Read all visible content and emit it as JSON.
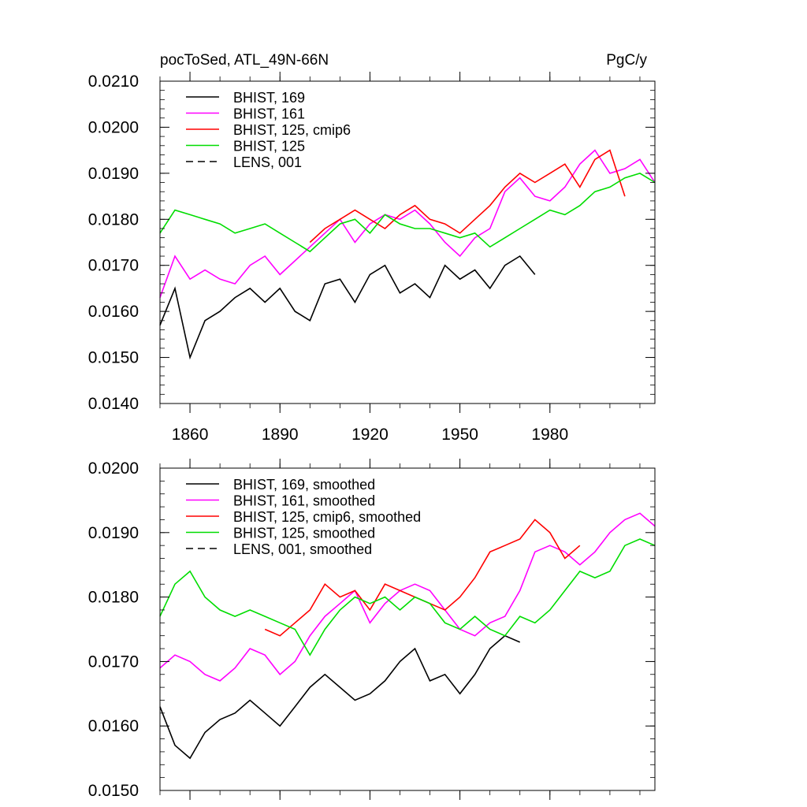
{
  "chart_data": [
    {
      "type": "line",
      "title_left": "pocToSed, ATL_49N-66N",
      "title_right": "PgC/y",
      "xlim": [
        1850,
        2015
      ],
      "x_ticks": [
        1860,
        1890,
        1920,
        1950,
        1980
      ],
      "x_tick_labels": [
        "1860",
        "1890",
        "1920",
        "1950",
        "1980"
      ],
      "ylim": [
        0.014,
        0.021
      ],
      "y_ticks": [
        0.014,
        0.015,
        0.016,
        0.017,
        0.018,
        0.019,
        0.02,
        0.021
      ],
      "y_tick_labels": [
        "0.0140",
        "0.0150",
        "0.0160",
        "0.0170",
        "0.0180",
        "0.0190",
        "0.0200",
        "0.0210"
      ],
      "legend_position": "top-left",
      "series": [
        {
          "name": "BHIST, 169",
          "color": "#000000",
          "dash": "solid",
          "x_start": 1850,
          "x_step": 5,
          "values": [
            0.0157,
            0.0165,
            0.015,
            0.0158,
            0.016,
            0.0163,
            0.0165,
            0.0162,
            0.0165,
            0.016,
            0.0158,
            0.0166,
            0.0167,
            0.0162,
            0.0168,
            0.017,
            0.0164,
            0.0166,
            0.0163,
            0.017,
            0.0167,
            0.0169,
            0.0165,
            0.017,
            0.0172,
            0.0168
          ]
        },
        {
          "name": "BHIST, 161",
          "color": "#ff00ff",
          "dash": "solid",
          "x_start": 1850,
          "x_step": 5,
          "values": [
            0.0163,
            0.0172,
            0.0167,
            0.0169,
            0.0167,
            0.0166,
            0.017,
            0.0172,
            0.0168,
            0.0171,
            0.0174,
            0.0177,
            0.018,
            0.0175,
            0.0179,
            0.0181,
            0.018,
            0.0182,
            0.0179,
            0.0175,
            0.0172,
            0.0176,
            0.0178,
            0.0186,
            0.0189,
            0.0185,
            0.0184,
            0.0187,
            0.0192,
            0.0195,
            0.019,
            0.0191,
            0.0193,
            0.0188
          ]
        },
        {
          "name": "BHIST, 125, cmip6",
          "color": "#ff0000",
          "dash": "solid",
          "x_start": 1900,
          "x_step": 5,
          "values": [
            0.0175,
            0.0178,
            0.018,
            0.0182,
            0.018,
            0.0178,
            0.0181,
            0.0183,
            0.018,
            0.0179,
            0.0177,
            0.018,
            0.0183,
            0.0187,
            0.019,
            0.0188,
            0.019,
            0.0192,
            0.0187,
            0.0193,
            0.0195,
            0.0185
          ]
        },
        {
          "name": "BHIST, 125",
          "color": "#00dd00",
          "dash": "solid",
          "x_start": 1850,
          "x_step": 5,
          "values": [
            0.0177,
            0.0182,
            0.0181,
            0.018,
            0.0179,
            0.0177,
            0.0178,
            0.0179,
            0.0177,
            0.0175,
            0.0173,
            0.0176,
            0.0179,
            0.018,
            0.0177,
            0.0181,
            0.0179,
            0.0178,
            0.0178,
            0.0177,
            0.0176,
            0.0177,
            0.0174,
            0.0176,
            0.0178,
            0.018,
            0.0182,
            0.0181,
            0.0183,
            0.0186,
            0.0187,
            0.0189,
            0.019,
            0.0188
          ]
        },
        {
          "name": "LENS, 001",
          "color": "#000000",
          "dash": "dashed",
          "x_start": 1850,
          "x_step": 5,
          "values": []
        }
      ]
    },
    {
      "type": "line",
      "xlim": [
        1850,
        2015
      ],
      "x_ticks": [
        1860,
        1890,
        1920,
        1950,
        1980
      ],
      "ylim": [
        0.015,
        0.02
      ],
      "y_ticks": [
        0.015,
        0.016,
        0.017,
        0.018,
        0.019,
        0.02
      ],
      "y_tick_labels": [
        "0.0150",
        "0.0160",
        "0.0170",
        "0.0180",
        "0.0190",
        "0.0200"
      ],
      "legend_position": "top-left",
      "series": [
        {
          "name": "BHIST, 169, smoothed",
          "color": "#000000",
          "dash": "solid",
          "x_start": 1850,
          "x_step": 5,
          "values": [
            0.0163,
            0.0157,
            0.0155,
            0.0159,
            0.0161,
            0.0162,
            0.0164,
            0.0162,
            0.016,
            0.0163,
            0.0166,
            0.0168,
            0.0166,
            0.0164,
            0.0165,
            0.0167,
            0.017,
            0.0172,
            0.0167,
            0.0168,
            0.0165,
            0.0168,
            0.0172,
            0.0174,
            0.0173
          ]
        },
        {
          "name": "BHIST, 161, smoothed",
          "color": "#ff00ff",
          "dash": "solid",
          "x_start": 1850,
          "x_step": 5,
          "values": [
            0.0169,
            0.0171,
            0.017,
            0.0168,
            0.0167,
            0.0169,
            0.0172,
            0.0171,
            0.0168,
            0.017,
            0.0174,
            0.0177,
            0.0179,
            0.0181,
            0.0176,
            0.0179,
            0.0181,
            0.0182,
            0.0181,
            0.0178,
            0.0175,
            0.0174,
            0.0176,
            0.0177,
            0.0181,
            0.0187,
            0.0188,
            0.0187,
            0.0185,
            0.0187,
            0.019,
            0.0192,
            0.0193,
            0.0191
          ]
        },
        {
          "name": "BHIST, 125, cmip6, smoothed",
          "color": "#ff0000",
          "dash": "solid",
          "x_start": 1885,
          "x_step": 5,
          "values": [
            0.0175,
            0.0174,
            0.0176,
            0.0178,
            0.0182,
            0.018,
            0.0181,
            0.0178,
            0.0182,
            0.0181,
            0.018,
            0.0179,
            0.0178,
            0.018,
            0.0183,
            0.0187,
            0.0188,
            0.0189,
            0.0192,
            0.019,
            0.0186,
            0.0188
          ]
        },
        {
          "name": "BHIST, 125, smoothed",
          "color": "#00dd00",
          "dash": "solid",
          "x_start": 1850,
          "x_step": 5,
          "values": [
            0.0177,
            0.0182,
            0.0184,
            0.018,
            0.0178,
            0.0177,
            0.0178,
            0.0177,
            0.0176,
            0.0175,
            0.0171,
            0.0175,
            0.0178,
            0.018,
            0.0179,
            0.018,
            0.0178,
            0.018,
            0.0179,
            0.0176,
            0.0175,
            0.0177,
            0.0175,
            0.0174,
            0.0177,
            0.0176,
            0.0178,
            0.0181,
            0.0184,
            0.0183,
            0.0184,
            0.0188,
            0.0189,
            0.0188
          ]
        },
        {
          "name": "LENS, 001, smoothed",
          "color": "#000000",
          "dash": "dashed",
          "x_start": 1850,
          "x_step": 5,
          "values": []
        }
      ]
    }
  ]
}
